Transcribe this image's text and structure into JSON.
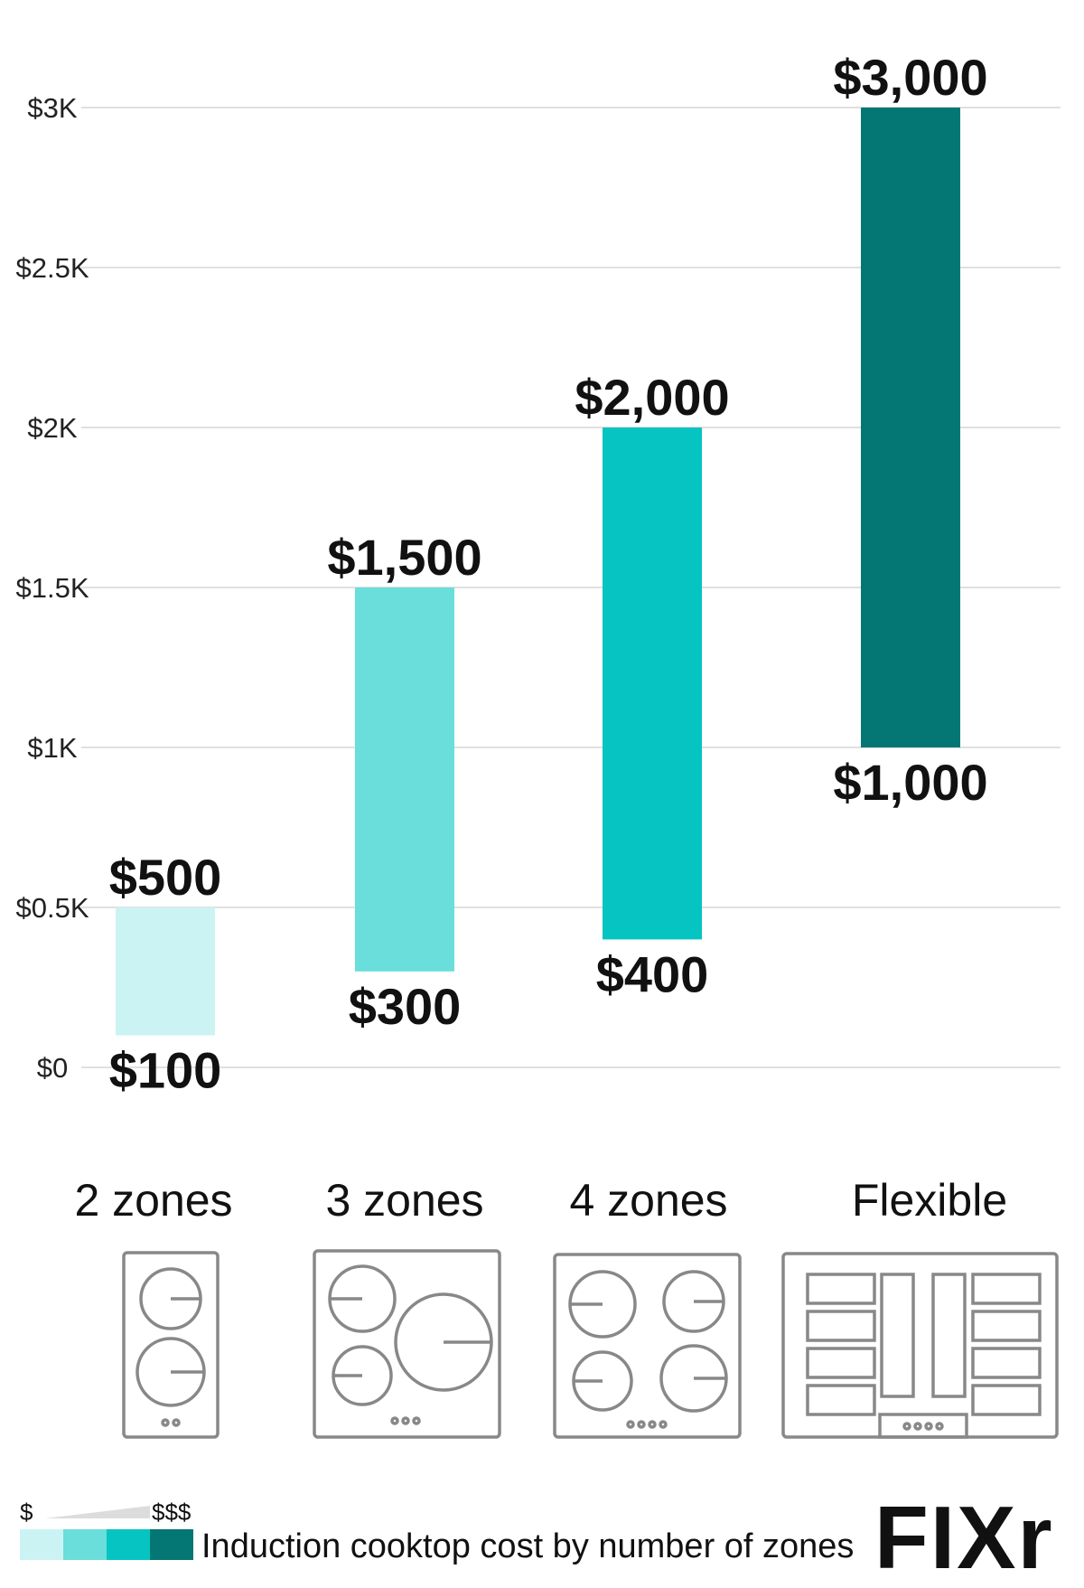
{
  "chart_data": {
    "type": "bar",
    "subtype": "floating-range",
    "categories": [
      "2 zones",
      "3 zones",
      "4 zones",
      "Flexible"
    ],
    "low": [
      100,
      300,
      400,
      1000
    ],
    "high": [
      500,
      1500,
      2000,
      3000
    ],
    "low_labels": [
      "$100",
      "$300",
      "$400",
      "$1,000"
    ],
    "high_labels": [
      "$500",
      "$1,500",
      "$2,000",
      "$3,000"
    ],
    "colors": [
      "#ccf3f3",
      "#69dedb",
      "#05c4c2",
      "#047674"
    ],
    "ylim": [
      0,
      3000
    ],
    "yticks": [
      0,
      500,
      1000,
      1500,
      2000,
      2500,
      3000
    ],
    "ytick_labels": [
      "$0",
      "$0.5K",
      "$1K",
      "$1.5K",
      "$2K",
      "$2.5K",
      "$3K"
    ],
    "grid": true,
    "icons": [
      "cooktop-2-zones-icon",
      "cooktop-3-zones-icon",
      "cooktop-4-zones-icon",
      "cooktop-flexible-icon"
    ]
  },
  "footer": {
    "scale_min": "$",
    "scale_max": "$$$",
    "caption": "Induction cooktop cost by number of zones",
    "logo": "FIXr"
  }
}
